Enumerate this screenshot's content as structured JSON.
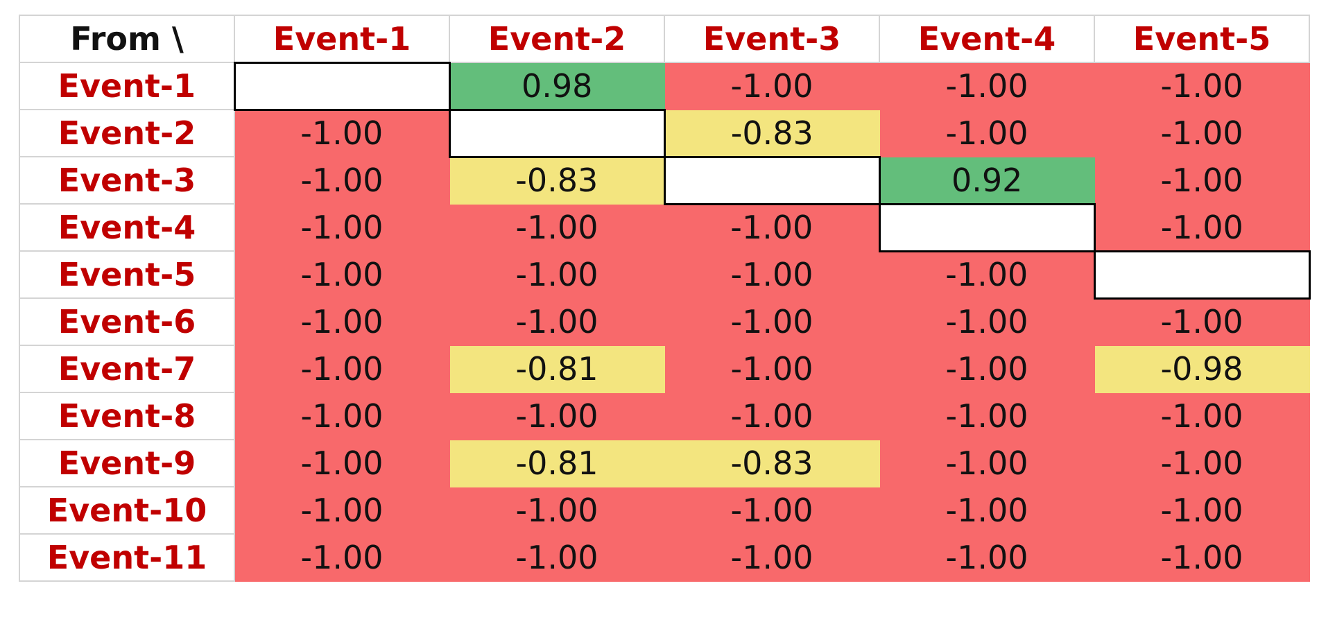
{
  "table": {
    "corner": "From \\",
    "columns": [
      "Event-1",
      "Event-2",
      "Event-3",
      "Event-4",
      "Event-5"
    ],
    "rows": [
      {
        "label": "Event-1",
        "cells": [
          null,
          "0.98",
          "-1.00",
          "-1.00",
          "-1.00"
        ],
        "fills": [
          "#ffffff",
          "#63be7b",
          "#f8696b",
          "#f8696b",
          "#f8696b"
        ]
      },
      {
        "label": "Event-2",
        "cells": [
          "-1.00",
          null,
          "-0.83",
          "-1.00",
          "-1.00"
        ],
        "fills": [
          "#f8696b",
          "#ffffff",
          "#f3e57f",
          "#f8696b",
          "#f8696b"
        ]
      },
      {
        "label": "Event-3",
        "cells": [
          "-1.00",
          "-0.83",
          null,
          "0.92",
          "-1.00"
        ],
        "fills": [
          "#f8696b",
          "#f3e57f",
          "#ffffff",
          "#63be7b",
          "#f8696b"
        ]
      },
      {
        "label": "Event-4",
        "cells": [
          "-1.00",
          "-1.00",
          "-1.00",
          null,
          "-1.00"
        ],
        "fills": [
          "#f8696b",
          "#f8696b",
          "#f8696b",
          "#ffffff",
          "#f8696b"
        ]
      },
      {
        "label": "Event-5",
        "cells": [
          "-1.00",
          "-1.00",
          "-1.00",
          "-1.00",
          null
        ],
        "fills": [
          "#f8696b",
          "#f8696b",
          "#f8696b",
          "#f8696b",
          "#ffffff"
        ]
      },
      {
        "label": "Event-6",
        "cells": [
          "-1.00",
          "-1.00",
          "-1.00",
          "-1.00",
          "-1.00"
        ],
        "fills": [
          "#f8696b",
          "#f8696b",
          "#f8696b",
          "#f8696b",
          "#f8696b"
        ]
      },
      {
        "label": "Event-7",
        "cells": [
          "-1.00",
          "-0.81",
          "-1.00",
          "-1.00",
          "-0.98"
        ],
        "fills": [
          "#f8696b",
          "#f3e57f",
          "#f8696b",
          "#f8696b",
          "#f3e57f"
        ]
      },
      {
        "label": "Event-8",
        "cells": [
          "-1.00",
          "-1.00",
          "-1.00",
          "-1.00",
          "-1.00"
        ],
        "fills": [
          "#f8696b",
          "#f8696b",
          "#f8696b",
          "#f8696b",
          "#f8696b"
        ]
      },
      {
        "label": "Event-9",
        "cells": [
          "-1.00",
          "-0.81",
          "-0.83",
          "-1.00",
          "-1.00"
        ],
        "fills": [
          "#f8696b",
          "#f3e57f",
          "#f3e57f",
          "#f8696b",
          "#f8696b"
        ]
      },
      {
        "label": "Event-10",
        "cells": [
          "-1.00",
          "-1.00",
          "-1.00",
          "-1.00",
          "-1.00"
        ],
        "fills": [
          "#f8696b",
          "#f8696b",
          "#f8696b",
          "#f8696b",
          "#f8696b"
        ]
      },
      {
        "label": "Event-11",
        "cells": [
          "-1.00",
          "-1.00",
          "-1.00",
          "-1.00",
          "-1.00"
        ],
        "fills": [
          "#f8696b",
          "#f8696b",
          "#f8696b",
          "#f8696b",
          "#f8696b"
        ]
      }
    ]
  }
}
